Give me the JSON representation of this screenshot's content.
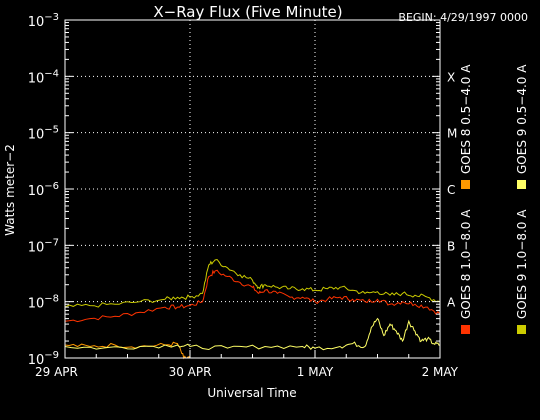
{
  "chart_data": {
    "type": "line",
    "title": "X−Ray Flux (Five Minute)",
    "begin_label": "BEGIN: 4/29/1997 0000",
    "xlabel": "Universal Time",
    "ylabel": "Watts meter−2",
    "yscale": "log",
    "ylim": [
      1e-09,
      0.001
    ],
    "xlim": [
      0,
      3
    ],
    "x_ticks": [
      {
        "value": 0,
        "label": "29 APR"
      },
      {
        "value": 1,
        "label": "30 APR"
      },
      {
        "value": 2,
        "label": "1 MAY"
      },
      {
        "value": 3,
        "label": "2 MAY"
      }
    ],
    "y_ticks": [
      {
        "exp": -3,
        "base": "10",
        "sup": "−3"
      },
      {
        "exp": -4,
        "base": "10",
        "sup": "−4"
      },
      {
        "exp": -5,
        "base": "10",
        "sup": "−5"
      },
      {
        "exp": -6,
        "base": "10",
        "sup": "−6"
      },
      {
        "exp": -7,
        "base": "10",
        "sup": "−7"
      },
      {
        "exp": -8,
        "base": "10",
        "sup": "−8"
      },
      {
        "exp": -9,
        "base": "10",
        "sup": "−9"
      }
    ],
    "flare_classes": [
      {
        "label": "X",
        "exp": -4
      },
      {
        "label": "M",
        "exp": -5
      },
      {
        "label": "C",
        "exp": -6
      },
      {
        "label": "B",
        "exp": -7
      },
      {
        "label": "A",
        "exp": -8
      }
    ],
    "grid": "dotted horizontal at each decade; dotted vertical at day boundaries",
    "legend_placement": "right, vertical",
    "series": [
      {
        "name": "GOES 8 1.0−8.0 A",
        "color": "#ff3300",
        "x": [
          0,
          0.2,
          0.4,
          0.6,
          0.8,
          0.9,
          1.0,
          1.1,
          1.15,
          1.2,
          1.3,
          1.4,
          1.5,
          1.55,
          1.6,
          1.7,
          1.8,
          1.9,
          2.0,
          2.1,
          2.2,
          2.3,
          2.4,
          2.5,
          2.6,
          2.7,
          2.8,
          2.9,
          3.0
        ],
        "y": [
          4.5e-09,
          5e-09,
          5.5e-09,
          6.5e-09,
          8e-09,
          8e-09,
          8.5e-09,
          1e-08,
          2.8e-08,
          3.5e-08,
          2.8e-08,
          2.2e-08,
          1.8e-08,
          1.4e-08,
          1.6e-08,
          1.4e-08,
          1.2e-08,
          1.2e-08,
          1e-08,
          1.1e-08,
          1.2e-08,
          1.1e-08,
          1e-08,
          1.1e-08,
          9e-09,
          1e-08,
          9e-09,
          8e-09,
          6e-09
        ]
      },
      {
        "name": "GOES 8 0.5−4.0 A",
        "color": "#ff9900",
        "x": [
          0,
          0.2,
          0.4,
          0.6,
          0.8,
          0.9,
          0.95,
          1.0
        ],
        "y": [
          1.7e-09,
          1.6e-09,
          1.7e-09,
          1.6e-09,
          1.7e-09,
          1.8e-09,
          1e-09,
          1e-09
        ]
      },
      {
        "name": "GOES 9 1.0−8.0 A",
        "color": "#cccc00",
        "x": [
          0,
          0.2,
          0.4,
          0.6,
          0.8,
          0.9,
          1.0,
          1.1,
          1.15,
          1.2,
          1.3,
          1.4,
          1.5,
          1.55,
          1.6,
          1.7,
          1.8,
          1.9,
          2.0,
          2.1,
          2.2,
          2.3,
          2.4,
          2.5,
          2.6,
          2.7,
          2.8,
          2.9,
          3.0
        ],
        "y": [
          8e-09,
          8.5e-09,
          9e-09,
          1e-08,
          1.1e-08,
          1.2e-08,
          1.2e-08,
          1.4e-08,
          4.5e-08,
          5.5e-08,
          4e-08,
          3e-08,
          2.4e-08,
          1.8e-08,
          2e-08,
          1.8e-08,
          1.7e-08,
          1.7e-08,
          1.6e-08,
          1.7e-08,
          1.8e-08,
          1.6e-08,
          1.4e-08,
          1.5e-08,
          1.3e-08,
          1.4e-08,
          1.3e-08,
          1.2e-08,
          1e-08
        ]
      },
      {
        "name": "GOES 9 0.5−4.0 A",
        "color": "#ffff66",
        "x": [
          0,
          0.3,
          0.6,
          0.9,
          1.0,
          1.3,
          1.6,
          1.9,
          2.0,
          2.2,
          2.3,
          2.4,
          2.45,
          2.5,
          2.55,
          2.6,
          2.65,
          2.7,
          2.75,
          2.8,
          2.85,
          2.9,
          2.95,
          3.0
        ],
        "y": [
          1.6e-09,
          1.5e-09,
          1.6e-09,
          1.7e-09,
          1.6e-09,
          1.5e-09,
          1.6e-09,
          1.6e-09,
          1.5e-09,
          1.6e-09,
          1.8e-09,
          1.6e-09,
          3.5e-09,
          5e-09,
          2.5e-09,
          4e-09,
          3e-09,
          2e-09,
          4.5e-09,
          3e-09,
          2e-09,
          2.2e-09,
          1.8e-09,
          1.7e-09
        ]
      }
    ]
  }
}
